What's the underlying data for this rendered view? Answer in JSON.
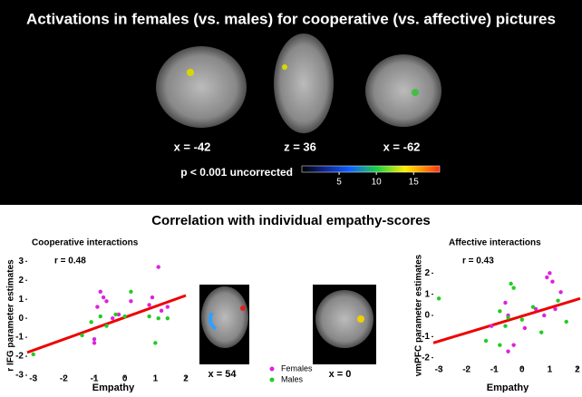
{
  "figure": {
    "title": "Activations in females (vs. males) for cooperative (vs. affective) pictures",
    "top_coords": [
      "x = -42",
      "z = 36",
      "x = -62"
    ],
    "colorbar": {
      "label": "p < 0.001 uncorrected",
      "lim": [
        0,
        18.5
      ],
      "ticks": [
        5,
        10,
        15
      ]
    },
    "section_title": "Correlation with individual empathy-scores",
    "middle_coords": [
      "x = 54",
      "x = 0"
    ]
  },
  "chart_data": [
    {
      "type": "scatter",
      "title": "Cooperative interactions",
      "annotation": "r = 0.48",
      "xlabel": "Empathy",
      "ylabel": "r IFG parameter estimates",
      "xlim": [
        -3.2,
        2
      ],
      "ylim": [
        -3,
        3.3
      ],
      "xticks": [
        -3,
        -2,
        -1,
        0,
        1,
        2
      ],
      "yticks": [
        -3,
        -2,
        -1,
        0,
        1,
        2,
        3
      ],
      "trend": {
        "color": "#ee0000",
        "x": [
          -3.2,
          2
        ],
        "y": [
          -1.8,
          1.2
        ]
      },
      "series": [
        {
          "name": "Females",
          "color": "#dd22dd",
          "x": [
            -0.9,
            -0.8,
            -0.7,
            -0.6,
            -1,
            -1,
            0.9,
            0.8,
            1.1,
            1.2,
            0.2,
            -0.4,
            1.4,
            -0.2
          ],
          "values": [
            0.6,
            1.4,
            1.1,
            0.9,
            -1.1,
            -1.3,
            1.1,
            0.7,
            2.7,
            0.4,
            0.9,
            0,
            0.6,
            0.2
          ]
        },
        {
          "name": "Males",
          "color": "#22cc22",
          "x": [
            -3,
            -1.4,
            -0.8,
            -0.6,
            0.2,
            -0.3,
            1,
            1.4,
            0.8,
            0,
            -1.1,
            1.1
          ],
          "values": [
            -1.9,
            -0.9,
            0.1,
            -0.4,
            1.4,
            0.2,
            -1.3,
            0,
            0.1,
            0.1,
            -0.2,
            0
          ]
        }
      ]
    },
    {
      "type": "scatter",
      "title": "Affective interactions",
      "annotation": "r = 0.43",
      "xlabel": "Empathy",
      "ylabel": "vmPFC parameter estimates",
      "xlim": [
        -3.2,
        2.1
      ],
      "ylim": [
        -2.4,
        2.4
      ],
      "xticks": [
        -3,
        -2,
        -1,
        0,
        1,
        2
      ],
      "yticks": [
        -2,
        -1,
        0,
        1,
        2
      ],
      "trend": {
        "color": "#ee0000",
        "x": [
          -3.2,
          2.1
        ],
        "y": [
          -1.3,
          0.8
        ]
      },
      "series": [
        {
          "color": "#dd22dd",
          "x": [
            1,
            1.1,
            0.9,
            -0.6,
            -0.3,
            -0.5,
            0.1,
            0.8,
            1.2,
            -1.1,
            1.4,
            0.5,
            -0.5
          ],
          "values": [
            2,
            1.6,
            1.8,
            0.6,
            -1.4,
            -1.7,
            -0.6,
            0,
            0.3,
            -0.5,
            1.1,
            0.3,
            0
          ]
        },
        {
          "color": "#22cc22",
          "x": [
            -3,
            -0.4,
            -0.3,
            -1.3,
            -0.8,
            -0.6,
            -0.5,
            0,
            0.7,
            1.3,
            1.6,
            -0.8,
            0.4
          ],
          "values": [
            0.8,
            1.5,
            1.3,
            -1.2,
            -1.4,
            -0.5,
            -0.1,
            -0.2,
            -0.8,
            0.7,
            -0.3,
            0.2,
            0.4
          ]
        }
      ]
    }
  ]
}
